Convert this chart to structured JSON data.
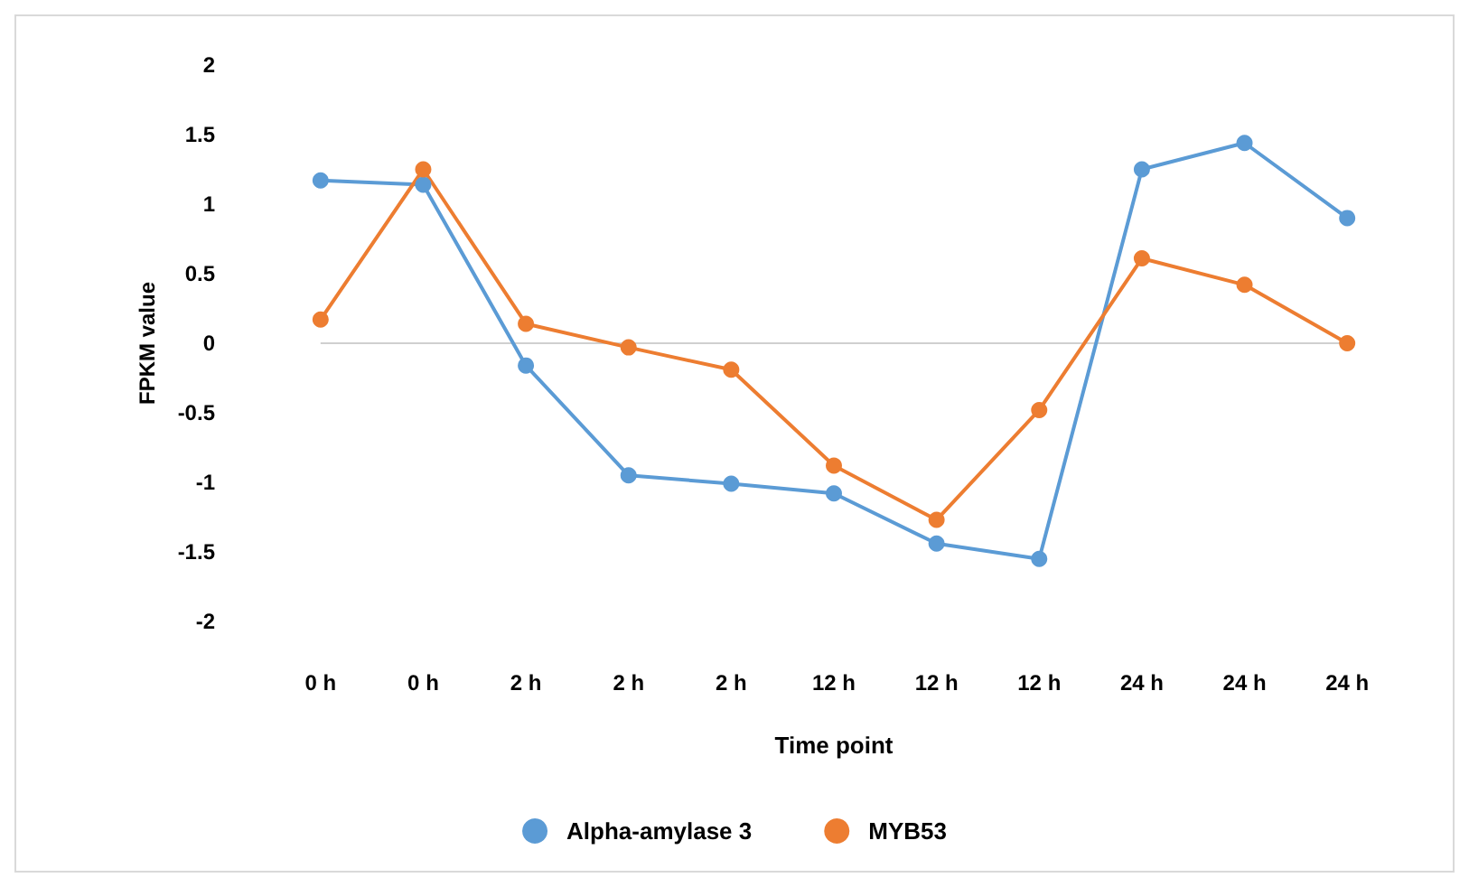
{
  "chart_data": {
    "type": "line",
    "xlabel": "Time point",
    "ylabel": "FPKM value",
    "categories": [
      "0 h",
      "0 h",
      "2 h",
      "2 h",
      "2 h",
      "12 h",
      "12 h",
      "12 h",
      "24 h",
      "24 h",
      "24 h"
    ],
    "series": [
      {
        "name": "Alpha-amylase 3",
        "color": "#5b9bd5",
        "values": [
          1.17,
          1.14,
          -0.16,
          -0.95,
          -1.01,
          -1.08,
          -1.44,
          -1.55,
          1.25,
          1.44,
          0.9
        ]
      },
      {
        "name": "MYB53",
        "color": "#ed7d31",
        "values": [
          0.17,
          1.25,
          0.14,
          -0.03,
          -0.19,
          -0.88,
          -1.27,
          -0.48,
          0.61,
          0.42,
          0
        ]
      }
    ],
    "ylim": [
      -2,
      2
    ],
    "yticks": [
      -2,
      -1.5,
      -1,
      -0.5,
      0,
      0.5,
      1,
      1.5,
      2
    ],
    "grid": false,
    "legend": "bottom",
    "marker": "circle",
    "line_style": "solid"
  }
}
